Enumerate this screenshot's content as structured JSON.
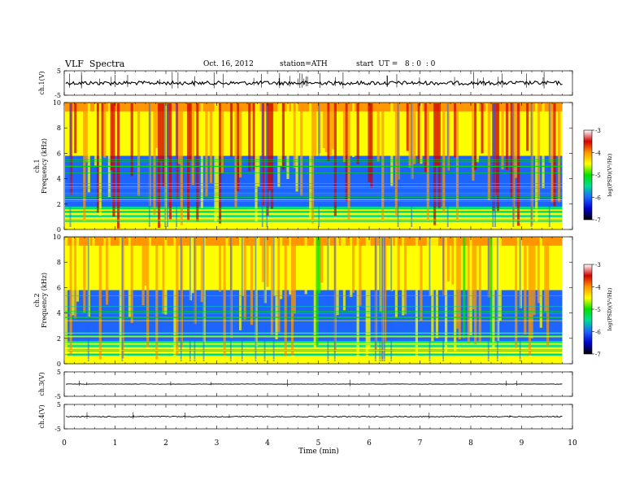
{
  "header": {
    "title": "VLF  Spectra",
    "date": "Oct. 16, 2012",
    "station": "station=ATH",
    "start_ut": "start  UT =   8 : 0  : 0"
  },
  "chart_data": {
    "type": "heatmap",
    "title": "VLF  Spectra",
    "xlabel": "Time  (min)",
    "x_ticks": [
      "0",
      "1",
      "2",
      "3",
      "4",
      "5",
      "6",
      "7",
      "8",
      "9",
      "10"
    ],
    "xlim": [
      0,
      10
    ],
    "data_end_min": 9.8,
    "panels": [
      {
        "kind": "waveform",
        "ylabel": "ch.1(V)",
        "ylim": [
          -5,
          5
        ],
        "y_ticks": [
          "5",
          "-5"
        ],
        "level": 0,
        "noise": 0.45
      },
      {
        "kind": "spectrogram",
        "ylabel": "ch.1 Frequency (kHz)",
        "ylim": [
          0,
          10
        ],
        "y_ticks": [
          "0",
          "2",
          "4",
          "6",
          "8",
          "10"
        ]
      },
      {
        "kind": "spectrogram",
        "ylabel": "ch.2 Frequency (kHz)",
        "ylim": [
          0,
          10
        ],
        "y_ticks": [
          "0",
          "2",
          "4",
          "6",
          "8",
          "10"
        ]
      },
      {
        "kind": "waveform",
        "ylabel": "ch.3(V)",
        "ylim": [
          -5,
          5
        ],
        "y_ticks": [
          "5",
          "-5"
        ],
        "level": 0,
        "noise": 0.05
      },
      {
        "kind": "waveform",
        "ylabel": "ch.4(V)",
        "ylim": [
          -5,
          5
        ],
        "y_ticks": [
          "5",
          "-5"
        ],
        "level": 0,
        "noise": 0.12
      }
    ],
    "colorbar": {
      "label": "log(PSD)(V²/Hz)",
      "range": [
        -7,
        -3
      ],
      "ticks": [
        "-3",
        "-4",
        "-5",
        "-6",
        "-7"
      ],
      "colors": [
        "#000000",
        "#0000cc",
        "#1e64ff",
        "#00dc96",
        "#00e000",
        "#ffff00",
        "#ff9600",
        "#d20000",
        "#ffffff"
      ]
    }
  }
}
